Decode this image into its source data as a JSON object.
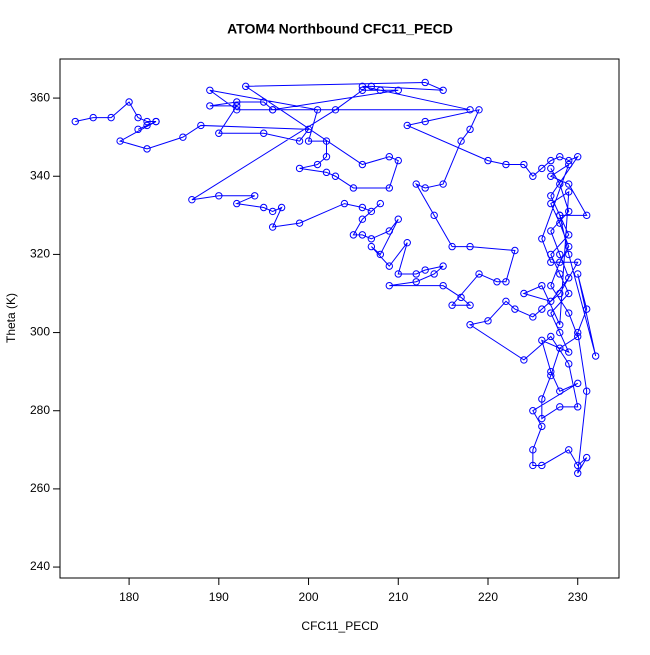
{
  "chart_data": {
    "type": "line",
    "marker": "circle",
    "title": "ATOM4 Northbound CFC11_PECD",
    "xlabel": "CFC11_PECD",
    "ylabel": "Theta (K)",
    "color": "#0000ff",
    "xlim": [
      172.3,
      234.6
    ],
    "ylim": [
      237.2,
      370
    ],
    "xticks": [
      180,
      190,
      200,
      210,
      220,
      230
    ],
    "yticks": [
      240,
      260,
      280,
      300,
      320,
      340,
      360
    ],
    "x": [
      174,
      176,
      178,
      180,
      181,
      182,
      183,
      181,
      182,
      183,
      179,
      182,
      186,
      188,
      200,
      199,
      195,
      190,
      192,
      189,
      192,
      195,
      196,
      192,
      189,
      201,
      200,
      202,
      202,
      201,
      199,
      202,
      203,
      205,
      209,
      210,
      209,
      206,
      193,
      213,
      215,
      207,
      206,
      208,
      218,
      196,
      210,
      206,
      203,
      187,
      190,
      194,
      192,
      195,
      196,
      197,
      196,
      199,
      204,
      206,
      207,
      208,
      206,
      205,
      206,
      207,
      209,
      210,
      208,
      207,
      209,
      211,
      210,
      212,
      213,
      215,
      214,
      212,
      209,
      215,
      217,
      218,
      216,
      219,
      221,
      222,
      223,
      218,
      216,
      214,
      212,
      213,
      215,
      217,
      218,
      219,
      213,
      211,
      220,
      222,
      224,
      225,
      226,
      227,
      228,
      229,
      230,
      227,
      228,
      229,
      227,
      228,
      229,
      227,
      228,
      229,
      226,
      227,
      228,
      230,
      225,
      226,
      225,
      225,
      226,
      229,
      230,
      231,
      230,
      231,
      230,
      231,
      230,
      232,
      229,
      228,
      231,
      229,
      227,
      229,
      226,
      227,
      230,
      228,
      226,
      225,
      223,
      222,
      220,
      218,
      224,
      227,
      229,
      230,
      228,
      226,
      226,
      227,
      228,
      230,
      229,
      227,
      228,
      229,
      228,
      227,
      229,
      228,
      226,
      224,
      227,
      229,
      228,
      227,
      229,
      228,
      227
    ],
    "values": [
      354,
      355,
      355,
      359,
      355,
      354,
      354,
      352,
      353,
      354,
      349,
      347,
      350,
      353,
      352,
      349,
      351,
      351,
      358,
      358,
      359,
      359,
      357,
      357,
      362,
      357,
      349,
      349,
      345,
      343,
      342,
      341,
      340,
      337,
      337,
      344,
      345,
      343,
      363,
      364,
      362,
      363,
      363,
      362,
      357,
      357,
      362,
      362,
      357,
      334,
      335,
      335,
      333,
      332,
      331,
      332,
      327,
      328,
      333,
      332,
      331,
      333,
      329,
      325,
      325,
      324,
      326,
      329,
      320,
      322,
      317,
      323,
      315,
      315,
      316,
      317,
      315,
      313,
      312,
      312,
      309,
      307,
      307,
      315,
      313,
      313,
      321,
      322,
      322,
      330,
      338,
      337,
      338,
      349,
      352,
      357,
      354,
      353,
      344,
      343,
      343,
      340,
      342,
      344,
      345,
      344,
      345,
      335,
      330,
      325,
      320,
      315,
      310,
      305,
      300,
      295,
      298,
      290,
      285,
      287,
      280,
      276,
      270,
      266,
      266,
      270,
      266,
      268,
      264,
      285,
      300,
      306,
      315,
      294,
      320,
      330,
      330,
      338,
      340,
      343,
      324,
      318,
      318,
      310,
      306,
      304,
      306,
      308,
      303,
      302,
      293,
      299,
      292,
      281,
      281,
      278,
      283,
      289,
      296,
      299,
      305,
      312,
      318,
      322,
      328,
      333,
      336,
      302,
      312,
      310,
      308,
      314,
      320,
      326,
      331,
      338,
      342
    ]
  }
}
